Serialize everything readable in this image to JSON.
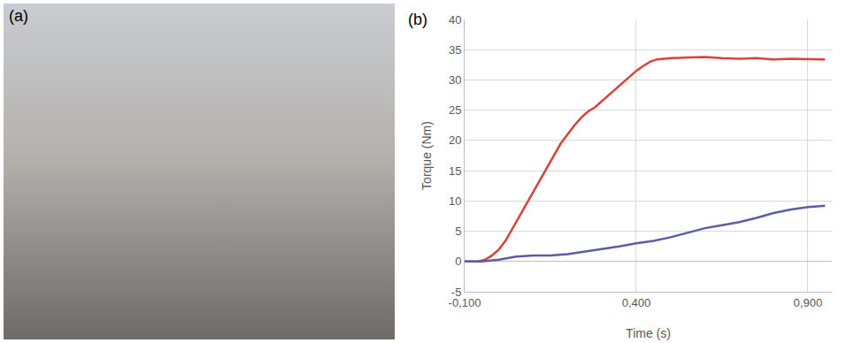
{
  "photo_panel": {
    "label": "(a)"
  },
  "chart_data": {
    "type": "line",
    "annotations": [
      "(b)"
    ],
    "x_label": "Time (s)",
    "y_label": "Torque (Nm)",
    "xlim": [
      -0.1,
      0.97
    ],
    "xticks": [
      {
        "value": -0.1,
        "label": "-0,100"
      },
      {
        "value": 0.4,
        "label": "0,400"
      },
      {
        "value": 0.9,
        "label": "0,900"
      }
    ],
    "ylim": [
      -5,
      40
    ],
    "yticks": [
      -5,
      0,
      5,
      10,
      15,
      20,
      25,
      30,
      35,
      40
    ],
    "grid": true,
    "series": [
      {
        "color": "#d9433a",
        "x": [
          -0.1,
          -0.06,
          -0.04,
          -0.02,
          0,
          0.02,
          0.04,
          0.06,
          0.08,
          0.1,
          0.12,
          0.14,
          0.16,
          0.18,
          0.2,
          0.22,
          0.24,
          0.26,
          0.28,
          0.3,
          0.32,
          0.34,
          0.36,
          0.38,
          0.4,
          0.42,
          0.44,
          0.46,
          0.5,
          0.55,
          0.6,
          0.65,
          0.7,
          0.75,
          0.8,
          0.85,
          0.9,
          0.95
        ],
        "values": [
          0,
          0,
          0.3,
          1,
          2,
          3.5,
          5.5,
          7.5,
          9.5,
          11.5,
          13.5,
          15.5,
          17.5,
          19.5,
          21,
          22.5,
          23.8,
          24.8,
          25.5,
          26.5,
          27.5,
          28.5,
          29.5,
          30.5,
          31.5,
          32.3,
          33,
          33.4,
          33.6,
          33.7,
          33.8,
          33.6,
          33.5,
          33.6,
          33.4,
          33.5,
          33.4,
          33.4
        ]
      },
      {
        "color": "#5b5ea6",
        "x": [
          -0.1,
          -0.05,
          0,
          0.05,
          0.1,
          0.15,
          0.2,
          0.25,
          0.3,
          0.35,
          0.4,
          0.45,
          0.5,
          0.55,
          0.6,
          0.65,
          0.7,
          0.75,
          0.8,
          0.85,
          0.9,
          0.95
        ],
        "values": [
          0,
          0,
          0.3,
          0.8,
          1,
          1,
          1.2,
          1.6,
          2,
          2.5,
          3,
          3.4,
          4,
          4.7,
          5.5,
          6,
          6.5,
          7.2,
          8,
          8.6,
          9,
          9.2
        ]
      }
    ]
  }
}
